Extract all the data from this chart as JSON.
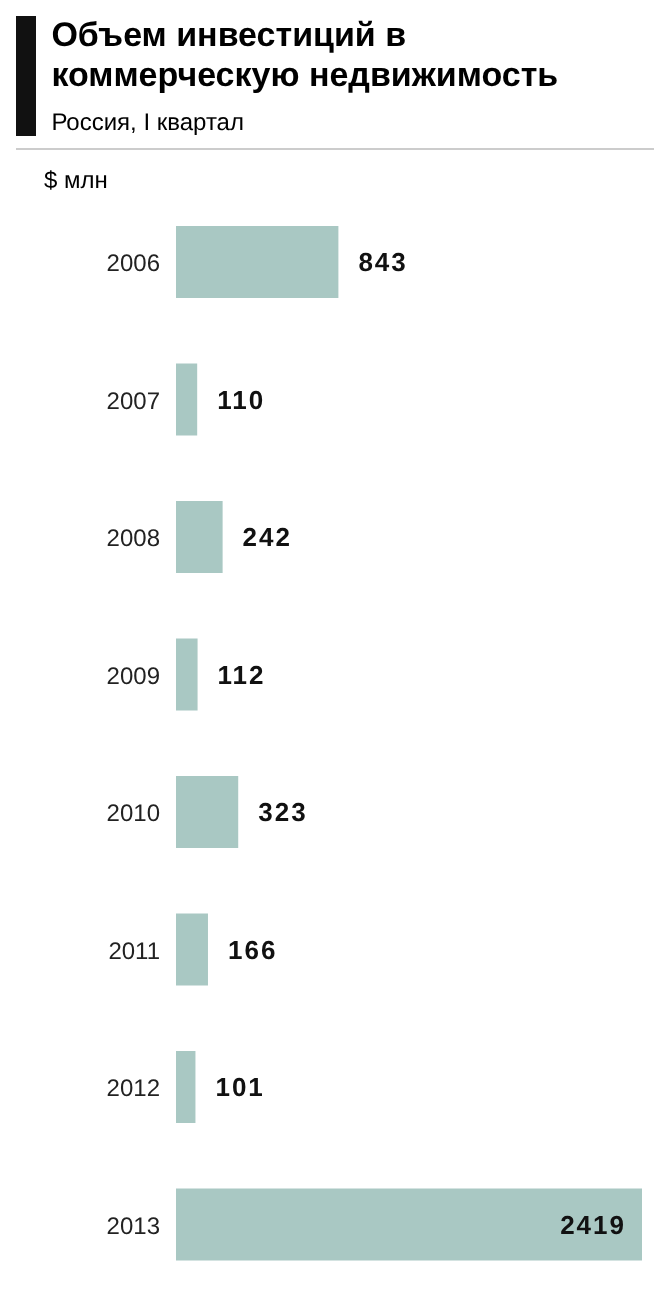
{
  "chart_data": {
    "type": "bar",
    "orientation": "horizontal",
    "title": "Объем инвестиций в коммерческую недвижимость",
    "subtitle": "Россия, I квартал",
    "xlabel": "$ млн",
    "categories": [
      "2006",
      "2007",
      "2008",
      "2009",
      "2010",
      "2011",
      "2012",
      "2013"
    ],
    "values": [
      843,
      110,
      242,
      112,
      323,
      166,
      101,
      2419
    ],
    "color": "#a9c8c3",
    "data_labels": true,
    "grid": false,
    "legend": false
  }
}
